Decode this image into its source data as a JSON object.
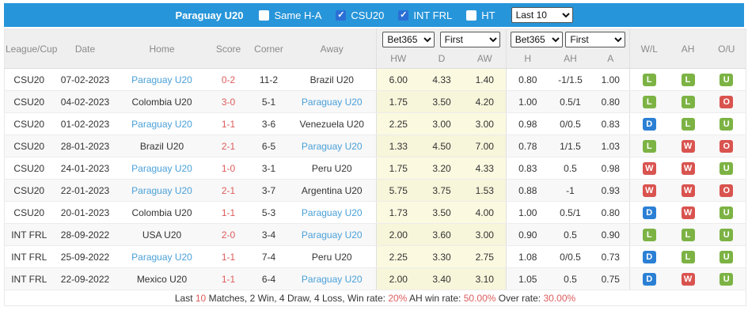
{
  "topbar": {
    "title": "Paraguay U20",
    "checkboxes": [
      {
        "label": "Same H-A",
        "checked": false
      },
      {
        "label": "CSU20",
        "checked": true
      },
      {
        "label": "INT FRL",
        "checked": true
      },
      {
        "label": "HT",
        "checked": false
      }
    ],
    "range_select": "Last 10"
  },
  "table": {
    "columns": [
      "League/Cup",
      "Date",
      "Home",
      "Score",
      "Corner",
      "Away"
    ],
    "odds_groups": [
      {
        "selects": [
          "Bet365",
          "First"
        ],
        "sub": [
          "HW",
          "D",
          "AW"
        ]
      },
      {
        "selects": [
          "Bet365",
          "First"
        ],
        "sub": [
          "H",
          "AH",
          "A"
        ]
      }
    ],
    "result_columns": [
      "W/L",
      "AH",
      "O/U"
    ],
    "badge_colors": {
      "W": "#d9534f",
      "L": "#7cb344",
      "D": "#2b80d5",
      "O": "#d9534f",
      "U": "#7cb344"
    },
    "rows": [
      {
        "league": "CSU20",
        "date": "07-02-2023",
        "home": "Paraguay U20",
        "home_link": true,
        "score": "0-2",
        "corner": "11-2",
        "away": "Brazil U20",
        "away_link": false,
        "odds": [
          "6.00",
          "4.33",
          "1.40",
          "0.80",
          "-1/1.5",
          "1.00"
        ],
        "wl": "L",
        "ah": "L",
        "ou": "U"
      },
      {
        "league": "CSU20",
        "date": "04-02-2023",
        "home": "Colombia U20",
        "home_link": false,
        "score": "3-0",
        "corner": "5-1",
        "away": "Paraguay U20",
        "away_link": true,
        "odds": [
          "1.75",
          "3.50",
          "4.20",
          "1.00",
          "0.5/1",
          "0.80"
        ],
        "wl": "L",
        "ah": "L",
        "ou": "O"
      },
      {
        "league": "CSU20",
        "date": "01-02-2023",
        "home": "Paraguay U20",
        "home_link": true,
        "score": "1-1",
        "corner": "3-6",
        "away": "Venezuela U20",
        "away_link": false,
        "odds": [
          "2.25",
          "3.00",
          "3.00",
          "0.98",
          "0/0.5",
          "0.83"
        ],
        "wl": "D",
        "ah": "L",
        "ou": "U"
      },
      {
        "league": "CSU20",
        "date": "28-01-2023",
        "home": "Brazil U20",
        "home_link": false,
        "score": "2-1",
        "corner": "6-5",
        "away": "Paraguay U20",
        "away_link": true,
        "odds": [
          "1.33",
          "4.50",
          "7.00",
          "0.78",
          "1/1.5",
          "1.03"
        ],
        "wl": "L",
        "ah": "W",
        "ou": "O"
      },
      {
        "league": "CSU20",
        "date": "24-01-2023",
        "home": "Paraguay U20",
        "home_link": true,
        "score": "1-0",
        "corner": "3-1",
        "away": "Peru U20",
        "away_link": false,
        "odds": [
          "1.75",
          "3.20",
          "4.33",
          "0.83",
          "0.5",
          "0.98"
        ],
        "wl": "W",
        "ah": "W",
        "ou": "U"
      },
      {
        "league": "CSU20",
        "date": "22-01-2023",
        "home": "Paraguay U20",
        "home_link": true,
        "score": "2-1",
        "corner": "3-7",
        "away": "Argentina U20",
        "away_link": false,
        "odds": [
          "5.75",
          "3.75",
          "1.53",
          "0.88",
          "-1",
          "0.93"
        ],
        "wl": "W",
        "ah": "W",
        "ou": "O"
      },
      {
        "league": "CSU20",
        "date": "20-01-2023",
        "home": "Colombia U20",
        "home_link": false,
        "score": "1-1",
        "corner": "5-3",
        "away": "Paraguay U20",
        "away_link": true,
        "odds": [
          "1.73",
          "3.50",
          "4.00",
          "1.00",
          "0.5/1",
          "0.80"
        ],
        "wl": "D",
        "ah": "W",
        "ou": "U"
      },
      {
        "league": "INT FRL",
        "date": "28-09-2022",
        "home": "USA U20",
        "home_link": false,
        "score": "2-0",
        "corner": "3-4",
        "away": "Paraguay U20",
        "away_link": true,
        "odds": [
          "2.00",
          "3.60",
          "3.00",
          "0.90",
          "0.5",
          "0.90"
        ],
        "wl": "L",
        "ah": "L",
        "ou": "U"
      },
      {
        "league": "INT FRL",
        "date": "25-09-2022",
        "home": "Paraguay U20",
        "home_link": true,
        "score": "1-1",
        "corner": "7-4",
        "away": "Peru U20",
        "away_link": false,
        "odds": [
          "2.25",
          "3.30",
          "2.75",
          "1.08",
          "0/0.5",
          "0.73"
        ],
        "wl": "D",
        "ah": "L",
        "ou": "U"
      },
      {
        "league": "INT FRL",
        "date": "22-09-2022",
        "home": "Mexico U20",
        "home_link": false,
        "score": "1-1",
        "corner": "6-4",
        "away": "Paraguay U20",
        "away_link": true,
        "odds": [
          "2.00",
          "3.40",
          "3.10",
          "1.05",
          "0.5",
          "0.75"
        ],
        "wl": "D",
        "ah": "W",
        "ou": "U"
      }
    ],
    "footer_segments": [
      {
        "text": "Last ",
        "red": false
      },
      {
        "text": "10",
        "red": true
      },
      {
        "text": " Matches, 2 Win, 4 Draw, 4 Loss, Win rate: ",
        "red": false
      },
      {
        "text": "20%",
        "red": true
      },
      {
        "text": " AH win rate: ",
        "red": false
      },
      {
        "text": "50.00%",
        "red": true
      },
      {
        "text": " Over rate: ",
        "red": false
      },
      {
        "text": "30.00%",
        "red": true
      }
    ]
  }
}
